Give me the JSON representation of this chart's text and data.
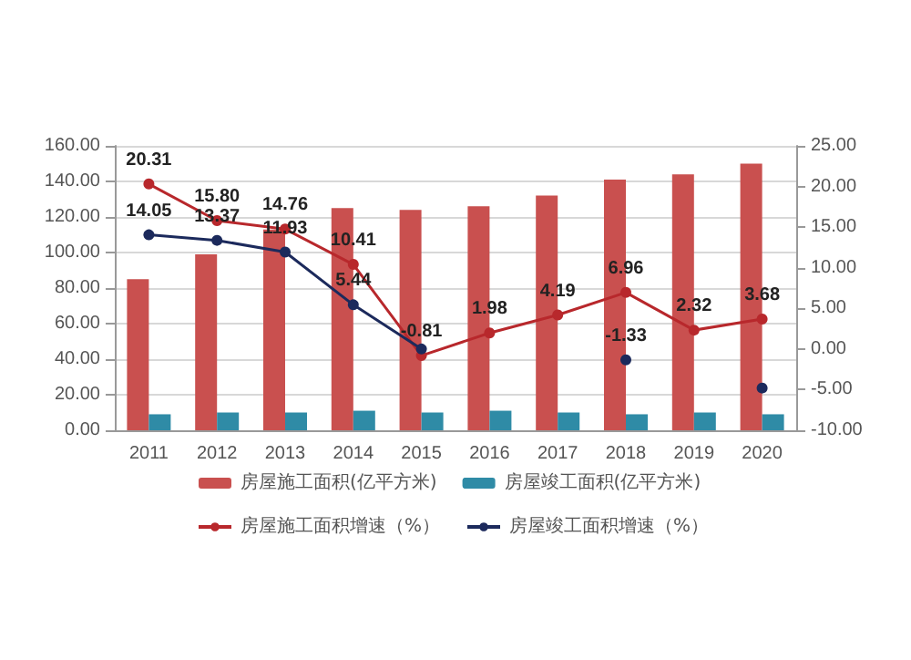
{
  "chart_data": {
    "type": "bar",
    "categories": [
      "2011",
      "2012",
      "2013",
      "2014",
      "2015",
      "2016",
      "2017",
      "2018",
      "2019",
      "2020"
    ],
    "series": [
      {
        "name": "房屋施工面积(亿平方米)",
        "color": "#c9504f",
        "values": [
          85,
          99,
          113,
          125,
          124,
          126,
          132,
          141,
          144,
          150
        ]
      },
      {
        "name": "房屋竣工面积(亿平方米)",
        "color": "#2f8ba6",
        "values": [
          9,
          10,
          10,
          11,
          10,
          11,
          10,
          9,
          10,
          9
        ]
      },
      {
        "name": "房屋施工面积增速（%）",
        "type": "line",
        "axis": "y2",
        "color": "#b8282c",
        "values": [
          20.31,
          15.8,
          14.76,
          10.41,
          -0.81,
          1.98,
          4.19,
          6.96,
          2.32,
          3.68
        ],
        "value_labels": [
          "20.31",
          "15.80",
          "14.76",
          "10.41",
          "-0.81",
          "1.98",
          "4.19",
          "6.96",
          "2.32",
          "3.68"
        ]
      },
      {
        "name": "房屋竣工面积增速（%）",
        "type": "line",
        "axis": "y2",
        "color": "#1c2a5c",
        "values": [
          14.05,
          13.37,
          11.93,
          5.44,
          0,
          null,
          null,
          -1.33,
          null,
          -4.8
        ],
        "value_labels": [
          "14.05",
          "13.37",
          "11.93",
          "5.44",
          null,
          null,
          null,
          "-1.33",
          null,
          null
        ]
      }
    ],
    "ylim": [
      0,
      160
    ],
    "yticks": [
      {
        "value": 0,
        "label": "0.00"
      },
      {
        "value": 20,
        "label": "20.00"
      },
      {
        "value": 40,
        "label": "40.00"
      },
      {
        "value": 60,
        "label": "60.00"
      },
      {
        "value": 80,
        "label": "80.00"
      },
      {
        "value": 100,
        "label": "100.00"
      },
      {
        "value": 120,
        "label": "120.00"
      },
      {
        "value": 140,
        "label": "140.00"
      },
      {
        "value": 160,
        "label": "160.00"
      }
    ],
    "y2lim": [
      -10,
      25
    ],
    "y2ticks": [
      {
        "value": -10,
        "label": "-10.00"
      },
      {
        "value": -5,
        "label": "-5.00"
      },
      {
        "value": 0,
        "label": "0.00"
      },
      {
        "value": 5,
        "label": "5.00"
      },
      {
        "value": 10,
        "label": "10.00"
      },
      {
        "value": 15,
        "label": "15.00"
      },
      {
        "value": 20,
        "label": "20.00"
      },
      {
        "value": 25,
        "label": "25.00"
      }
    ],
    "grid": "y",
    "legend": "bottom",
    "marker": "circle"
  }
}
